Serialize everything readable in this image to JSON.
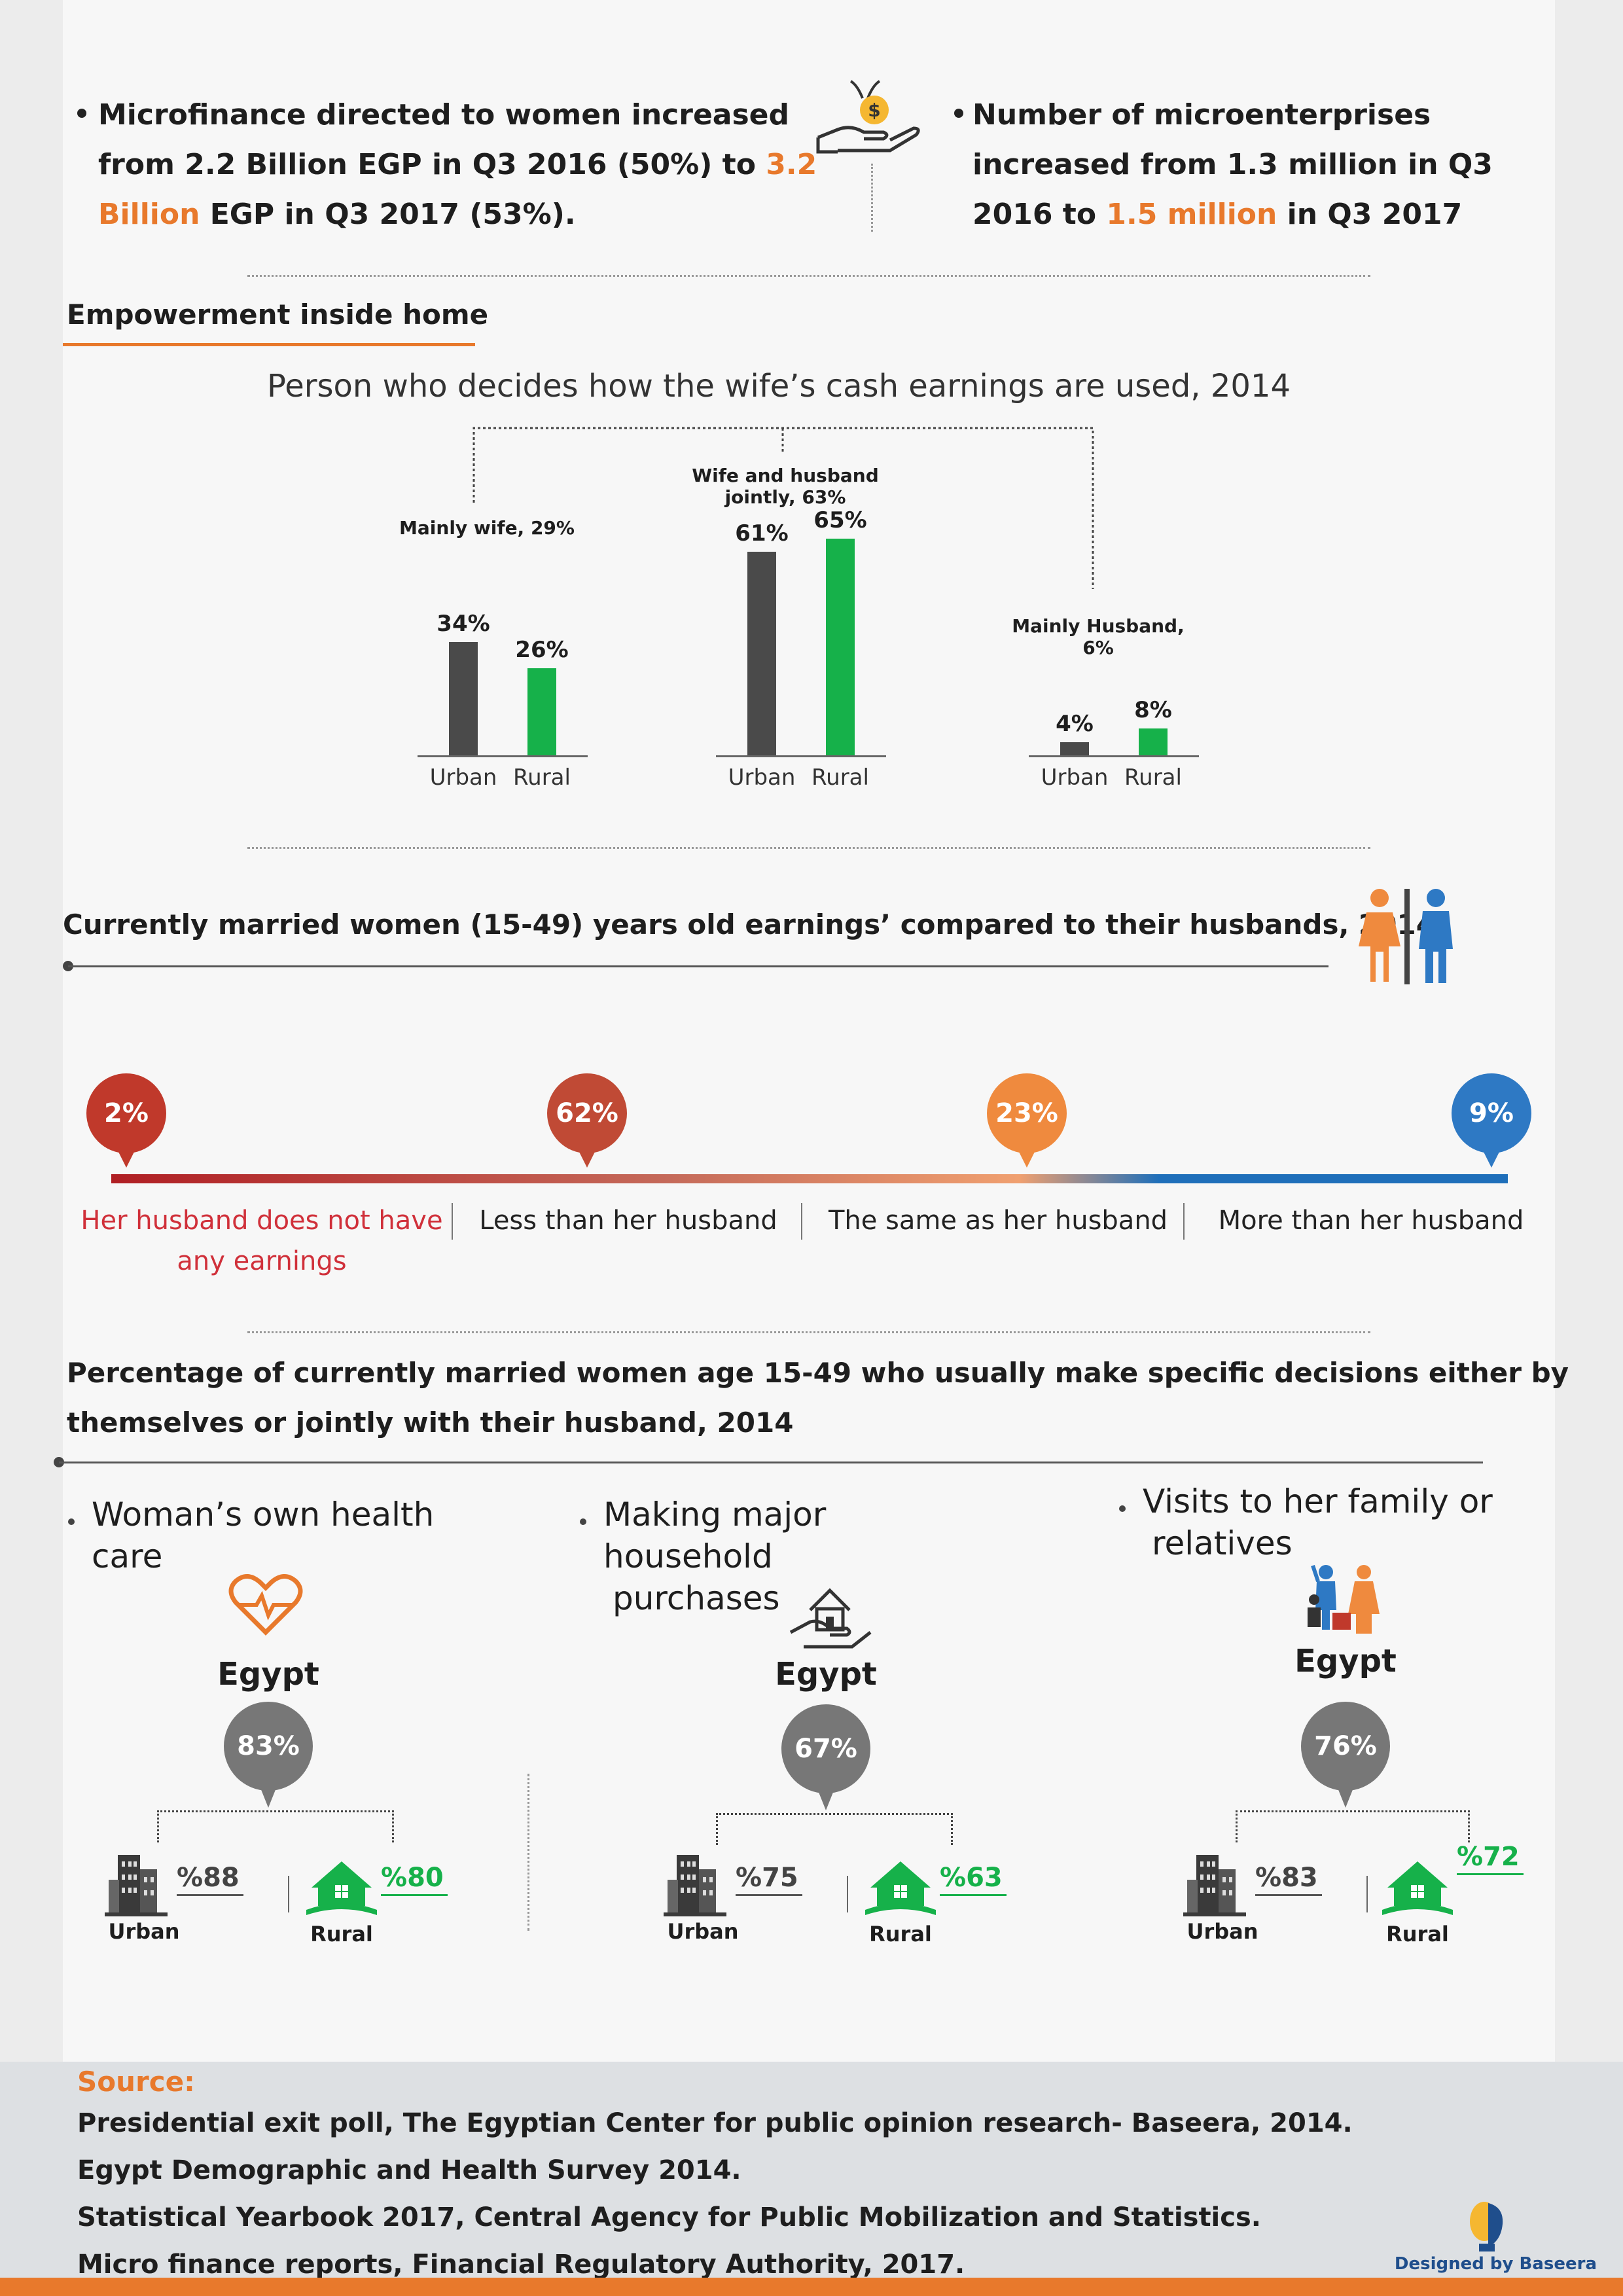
{
  "top": {
    "left_text_a": "Microfinance directed to women increased from 2.2 Billion EGP in Q3 2016 (50%) to ",
    "left_highlight": "3.2 Billion",
    "left_text_b": " EGP in Q3 2017 (53%).",
    "right_text_a": "Number of microenterprises increased from 1.3 million in Q3 2016 to ",
    "right_highlight": "1.5 million",
    "right_text_b": " in Q3 2017",
    "icon": "hand-coin-icon"
  },
  "empowerment": {
    "section_title": "Empowerment inside home",
    "chart_title": "Person who decides how the wife’s cash earnings are used, 2014"
  },
  "chart_data": {
    "type": "bar",
    "title": "Person who decides how the wife’s cash earnings are used, 2014",
    "groups": [
      {
        "label": "Mainly wife, 29%",
        "categories": [
          "Urban",
          "Rural"
        ],
        "values": [
          34,
          26
        ],
        "value_labels": [
          "34%",
          "26%"
        ]
      },
      {
        "label": "Wife and husband jointly, 63%",
        "categories": [
          "Urban",
          "Rural"
        ],
        "values": [
          61,
          65
        ],
        "value_labels": [
          "61%",
          "65%"
        ]
      },
      {
        "label": "Mainly Husband, 6%",
        "categories": [
          "Urban",
          "Rural"
        ],
        "values": [
          4,
          8
        ],
        "value_labels": [
          "4%",
          "8%"
        ]
      }
    ],
    "series_colors": {
      "Urban": "#4a4a4a",
      "Rural": "#16b14a"
    }
  },
  "earnings": {
    "title": "Currently married women (15-49) years old earnings’ compared to their husbands, 2014",
    "icon": "woman-man-icon",
    "scale": [
      {
        "value": "2%",
        "label_a": "Her husband does not have",
        "label_b": "any earnings",
        "color": "#c0392b"
      },
      {
        "value": "62%",
        "label_a": "Less than her husband",
        "label_b": "",
        "color": "#c04a35"
      },
      {
        "value": "23%",
        "label_a": "The same as her husband",
        "label_b": "",
        "color": "#ef8a3e"
      },
      {
        "value": "9%",
        "label_a": "More than her husband",
        "label_b": "",
        "color": "#2e79c4"
      }
    ]
  },
  "decisions": {
    "title_a": "Percentage of currently married women age 15-49 who usually make specific decisions either by",
    "title_b": "themselves or jointly with their husband, 2014",
    "columns": [
      {
        "title_a": "Woman’s own health care",
        "title_b": "",
        "icon": "heart-pulse-icon",
        "egypt": "Egypt",
        "total": "83%",
        "urban": "%88",
        "rural": "%80",
        "urban_label": "Urban",
        "rural_label": "Rural"
      },
      {
        "title_a": "Making major household",
        "title_b": "purchases",
        "icon": "house-hand-icon",
        "egypt": "Egypt",
        "total": "67%",
        "urban": "%75",
        "rural": "%63",
        "urban_label": "Urban",
        "rural_label": "Rural"
      },
      {
        "title_a": "Visits to her family or",
        "title_b": "relatives",
        "icon": "family-icon",
        "egypt": "Egypt",
        "total": "76%",
        "urban": "%83",
        "rural": "%72",
        "urban_label": "Urban",
        "rural_label": "Rural"
      }
    ]
  },
  "source": {
    "heading": "Source:",
    "lines": [
      "Presidential exit poll, The Egyptian Center for public opinion research- Baseera, 2014.",
      "Egypt Demographic and Health Survey 2014.",
      "Statistical Yearbook 2017, Central Agency for Public Mobilization and Statistics.",
      "Micro finance reports, Financial Regulatory Authority, 2017."
    ],
    "credit": "Designed by Baseera"
  }
}
